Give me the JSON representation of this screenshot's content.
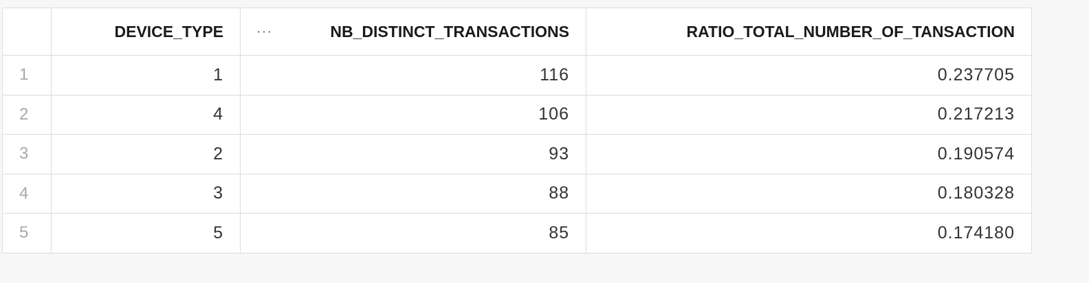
{
  "table": {
    "columns": [
      {
        "label": "DEVICE_TYPE"
      },
      {
        "label": "NB_DISTINCT_TRANSACTIONS",
        "menu_icon": "···"
      },
      {
        "label": "RATIO_TOTAL_NUMBER_OF_TANSACTION"
      }
    ],
    "rows": [
      {
        "index": "1",
        "device_type": "1",
        "nb_distinct_transactions": "116",
        "ratio": "0.237705"
      },
      {
        "index": "2",
        "device_type": "4",
        "nb_distinct_transactions": "106",
        "ratio": "0.217213"
      },
      {
        "index": "3",
        "device_type": "2",
        "nb_distinct_transactions": "93",
        "ratio": "0.190574"
      },
      {
        "index": "4",
        "device_type": "3",
        "nb_distinct_transactions": "88",
        "ratio": "0.180328"
      },
      {
        "index": "5",
        "device_type": "5",
        "nb_distinct_transactions": "85",
        "ratio": "0.174180"
      }
    ]
  }
}
